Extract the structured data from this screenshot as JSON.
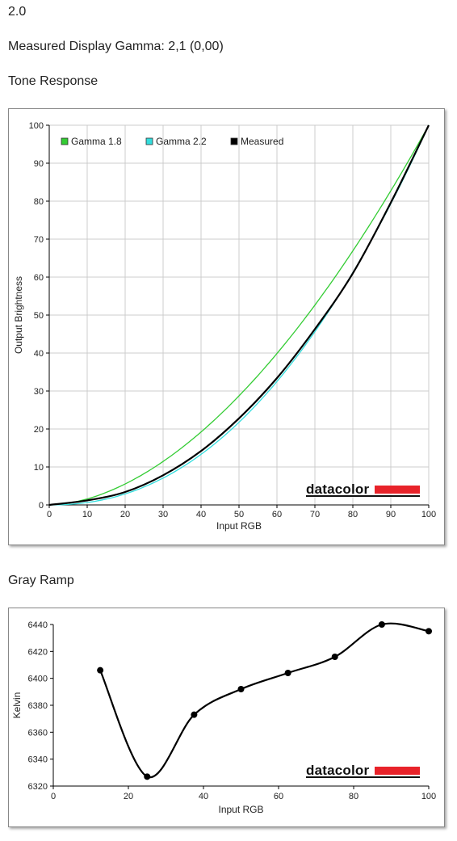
{
  "header": {
    "version": "2.0",
    "gamma_label": "Measured Display Gamma: 2,1 (0,00)",
    "tone_title": "Tone Response",
    "gray_title": "Gray Ramp"
  },
  "brand": {
    "name": "datacolor",
    "color": "#e8232a"
  },
  "chart_data": [
    {
      "type": "line",
      "title": "Tone Response",
      "xlabel": "Input RGB",
      "ylabel": "Output Brightness",
      "xlim": [
        0,
        100
      ],
      "ylim": [
        0,
        100
      ],
      "xticks": [
        0,
        10,
        20,
        30,
        40,
        50,
        60,
        70,
        80,
        90,
        100
      ],
      "yticks": [
        0,
        10,
        20,
        30,
        40,
        50,
        60,
        70,
        80,
        90,
        100
      ],
      "grid": true,
      "legend_position": "top-left",
      "series": [
        {
          "name": "Gamma 1.8",
          "color": "#33cc33",
          "gamma": 1.8
        },
        {
          "name": "Gamma 2.2",
          "color": "#33dddd",
          "gamma": 2.2
        },
        {
          "name": "Measured",
          "color": "#000000",
          "x": [
            0,
            10,
            20,
            30,
            40,
            50,
            60,
            70,
            80,
            90,
            100
          ],
          "y": [
            0,
            1.2,
            3.4,
            7.8,
            14.2,
            22.8,
            33.4,
            46.3,
            61.0,
            79.6,
            100
          ]
        }
      ]
    },
    {
      "type": "line",
      "title": "Gray Ramp",
      "xlabel": "Input RGB",
      "ylabel": "Kelvin",
      "xlim": [
        0,
        100
      ],
      "ylim": [
        6320,
        6440
      ],
      "xticks": [
        0,
        20,
        40,
        60,
        80,
        100
      ],
      "yticks": [
        6320,
        6340,
        6360,
        6380,
        6400,
        6420,
        6440
      ],
      "grid": false,
      "series": [
        {
          "color": "#000000",
          "x": [
            12.5,
            25,
            37.5,
            50,
            62.5,
            75,
            87.5,
            100
          ],
          "y": [
            6406,
            6327,
            6373,
            6392,
            6404,
            6416,
            6440,
            6435
          ]
        }
      ]
    }
  ]
}
